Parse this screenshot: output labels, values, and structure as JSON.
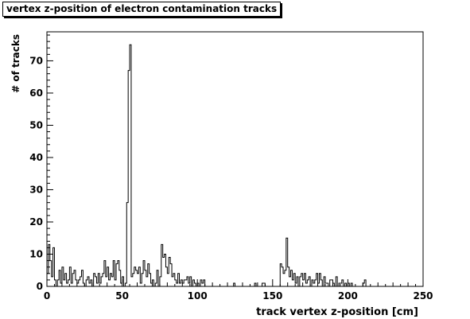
{
  "chart_data": {
    "type": "bar",
    "title": "vertex z-position of electron contamination tracks",
    "xlabel": "track vertex z-position [cm]",
    "ylabel": "# of tracks",
    "xlim": [
      0,
      250
    ],
    "ylim": [
      0,
      79
    ],
    "xticks": [
      0,
      50,
      100,
      150,
      200,
      250
    ],
    "yticks": [
      0,
      10,
      20,
      30,
      40,
      50,
      60,
      70
    ],
    "bin_width": 1,
    "series": [
      {
        "values": [
          4,
          13,
          8,
          3,
          12,
          2,
          0,
          2,
          5,
          1,
          6,
          2,
          4,
          1,
          2,
          6,
          1,
          4,
          5,
          2,
          1,
          2,
          3,
          5,
          1,
          0,
          2,
          3,
          1,
          2,
          0,
          4,
          3,
          1,
          4,
          1,
          3,
          4,
          8,
          3,
          6,
          2,
          4,
          3,
          8,
          2,
          7,
          8,
          5,
          1,
          3,
          0,
          1,
          26,
          67,
          75,
          3,
          4,
          6,
          5,
          4,
          6,
          1,
          4,
          8,
          5,
          3,
          7,
          4,
          1,
          2,
          0,
          1,
          5,
          0,
          3,
          13,
          9,
          10,
          6,
          4,
          9,
          7,
          3,
          4,
          2,
          1,
          4,
          1,
          2,
          1,
          2,
          2,
          3,
          1,
          3,
          0,
          2,
          1,
          0,
          1,
          0,
          2,
          1,
          2,
          0,
          0,
          0,
          0,
          0,
          0,
          0,
          0,
          0,
          0,
          0,
          0,
          0,
          0,
          0,
          0,
          0,
          0,
          0,
          1,
          0,
          0,
          0,
          0,
          0,
          0,
          0,
          0,
          0,
          0,
          0,
          0,
          0,
          1,
          0,
          0,
          0,
          0,
          1,
          1,
          0,
          0,
          0,
          0,
          0,
          0,
          0,
          0,
          0,
          0,
          7,
          6,
          4,
          5,
          15,
          6,
          3,
          5,
          2,
          4,
          1,
          3,
          0,
          3,
          4,
          2,
          4,
          1,
          2,
          3,
          0,
          2,
          1,
          2,
          4,
          1,
          4,
          2,
          0,
          3,
          1,
          1,
          0,
          2,
          2,
          1,
          0,
          3,
          0,
          1,
          1,
          2,
          0,
          1,
          0,
          1,
          0,
          1,
          0,
          0,
          0,
          0,
          0,
          0,
          0,
          1,
          2,
          0,
          0,
          0,
          0,
          0,
          0,
          0,
          0,
          0,
          0,
          0,
          0,
          0,
          0,
          0,
          0,
          0,
          0,
          0,
          0,
          0,
          0,
          0,
          0,
          0,
          0,
          0,
          0,
          0,
          0,
          0,
          0,
          0,
          0,
          0,
          0,
          0,
          0
        ]
      }
    ]
  }
}
